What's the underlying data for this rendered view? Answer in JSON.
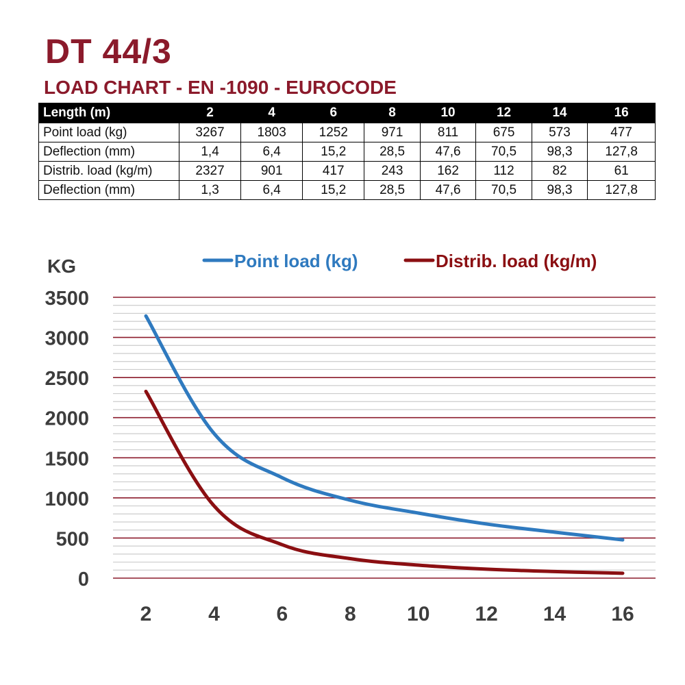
{
  "title": "DT 44/3",
  "subtitle": "LOAD CHART - EN -1090 - EUROCODE",
  "table": {
    "header": [
      "Length (m)",
      "2",
      "4",
      "6",
      "8",
      "10",
      "12",
      "14",
      "16"
    ],
    "rows": [
      [
        "Point load (kg)",
        "3267",
        "1803",
        "1252",
        "971",
        "811",
        "675",
        "573",
        "477"
      ],
      [
        "Deflection (mm)",
        "1,4",
        "6,4",
        "15,2",
        "28,5",
        "47,6",
        "70,5",
        "98,3",
        "127,8"
      ],
      [
        "Distrib. load (kg/m)",
        "2327",
        "901",
        "417",
        "243",
        "162",
        "112",
        "82",
        "61"
      ],
      [
        "Deflection (mm)",
        "1,3",
        "6,4",
        "15,2",
        "28,5",
        "47,6",
        "70,5",
        "98,3",
        "127,8"
      ]
    ]
  },
  "chart_data": {
    "type": "line",
    "ylabel": "KG",
    "xlabel": "",
    "x": [
      2,
      4,
      6,
      8,
      10,
      12,
      14,
      16
    ],
    "ylim": [
      0,
      3500
    ],
    "yticks": [
      0,
      500,
      1000,
      1500,
      2000,
      2500,
      3000,
      3500
    ],
    "grid": true,
    "legend": "top",
    "series": [
      {
        "name": "Point load (kg)",
        "color": "#2f7abf",
        "values": [
          3267,
          1803,
          1252,
          971,
          811,
          675,
          573,
          477
        ]
      },
      {
        "name": "Distrib. load (kg/m)",
        "color": "#8b0f12",
        "values": [
          2327,
          901,
          417,
          243,
          162,
          112,
          82,
          61
        ]
      }
    ],
    "colors": {
      "major_grid": "#8b1a2b",
      "minor_grid": "#cccccc",
      "axis_text": "#3d3d3d"
    }
  }
}
